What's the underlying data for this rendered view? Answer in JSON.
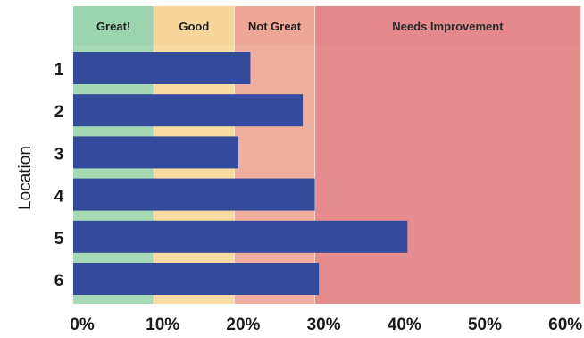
{
  "chart_data": {
    "type": "bar",
    "orientation": "horizontal",
    "title": "",
    "xlabel": "",
    "ylabel": "Location",
    "categories": [
      "1",
      "2",
      "3",
      "4",
      "5",
      "6"
    ],
    "values": [
      22,
      28.5,
      20.5,
      30,
      41.5,
      30.5
    ],
    "xlim": [
      0,
      63
    ],
    "xticks": [
      0,
      10,
      20,
      30,
      40,
      50,
      60
    ],
    "xtick_labels": [
      "0%",
      "10%",
      "20%",
      "30%",
      "40%",
      "50%",
      "60%"
    ],
    "grid": false,
    "legend": "none",
    "bar_color": "#344a9a",
    "background_bands": [
      {
        "label": "Great!",
        "from": 0,
        "to": 10,
        "color": "#a6d9b4"
      },
      {
        "label": "Good",
        "from": 10,
        "to": 20,
        "color": "#f7dba0"
      },
      {
        "label": "Not Great",
        "from": 20,
        "to": 30,
        "color": "#f0ae9e"
      },
      {
        "label": "Needs Improvement",
        "from": 30,
        "to": 63,
        "color": "#e58c8f"
      }
    ],
    "band_header_colors": [
      "#9cd5ad",
      "#f6d69a",
      "#eea797",
      "#e3888b"
    ]
  }
}
